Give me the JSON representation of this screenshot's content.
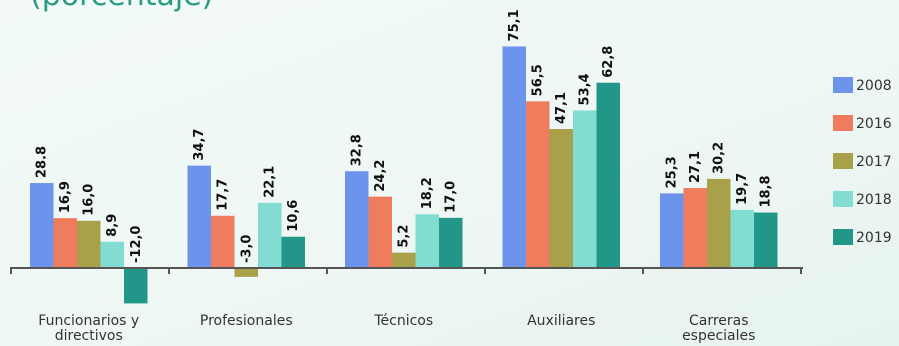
{
  "title": "(porcentaje)",
  "chart_data": {
    "type": "bar",
    "title": "(porcentaje)",
    "categories": [
      [
        "Funcionarios y",
        "directivos"
      ],
      [
        "Profesionales"
      ],
      [
        "Técnicos"
      ],
      [
        "Auxiliares"
      ],
      [
        "Carreras",
        "especiales"
      ]
    ],
    "series": [
      {
        "name": "2008",
        "color": "#6c94ec",
        "values": [
          28.8,
          34.7,
          32.8,
          75.1,
          25.3
        ],
        "labels": [
          "28.8",
          "34,7",
          "32,8",
          "75,1",
          "25,3"
        ]
      },
      {
        "name": "2016",
        "color": "#f07c5e",
        "values": [
          16.9,
          17.7,
          24.2,
          56.5,
          27.1
        ],
        "labels": [
          "16,9",
          "17,7",
          "24,2",
          "56,5",
          "27,1"
        ]
      },
      {
        "name": "2017",
        "color": "#a9a04a",
        "values": [
          16.0,
          -3.0,
          5.2,
          47.1,
          30.2
        ],
        "labels": [
          "16,0",
          "-3,0",
          "5,2",
          "47,1",
          "30,2"
        ]
      },
      {
        "name": "2018",
        "color": "#82dcd2",
        "values": [
          8.9,
          22.1,
          18.2,
          53.4,
          19.7
        ],
        "labels": [
          "8,9",
          "22,1",
          "18,2",
          "53,4",
          "19,7"
        ]
      },
      {
        "name": "2019",
        "color": "#23968a",
        "values": [
          -12.0,
          10.6,
          17.0,
          62.8,
          18.8
        ],
        "labels": [
          "-12,0",
          "10,6",
          "17,0",
          "62,8",
          "18,8"
        ]
      }
    ],
    "grid": false,
    "legend": "right"
  }
}
